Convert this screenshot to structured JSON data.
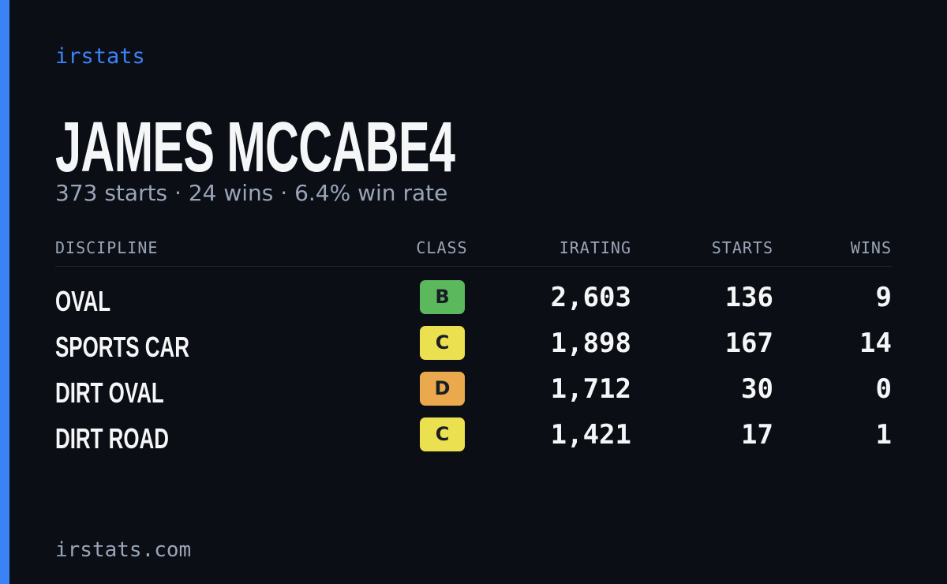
{
  "brand": "irstats",
  "driver": {
    "name": "JAMES MCCABE4",
    "summary": "373 starts · 24 wins · 6.4% win rate"
  },
  "table": {
    "headers": [
      "DISCIPLINE",
      "CLASS",
      "IRATING",
      "STARTS",
      "WINS"
    ],
    "rows": [
      {
        "discipline": "OVAL",
        "class": "B",
        "class_color": "#5cb85c",
        "irating": "2,603",
        "starts": 136,
        "wins": 9
      },
      {
        "discipline": "SPORTS CAR",
        "class": "C",
        "class_color": "#ebe04f",
        "irating": "1,898",
        "starts": 167,
        "wins": 14
      },
      {
        "discipline": "DIRT OVAL",
        "class": "D",
        "class_color": "#eba94e",
        "irating": "1,712",
        "starts": 30,
        "wins": 0
      },
      {
        "discipline": "DIRT ROAD",
        "class": "C",
        "class_color": "#ebe04f",
        "irating": "1,421",
        "starts": 17,
        "wins": 1
      }
    ]
  },
  "footer": "irstats.com"
}
